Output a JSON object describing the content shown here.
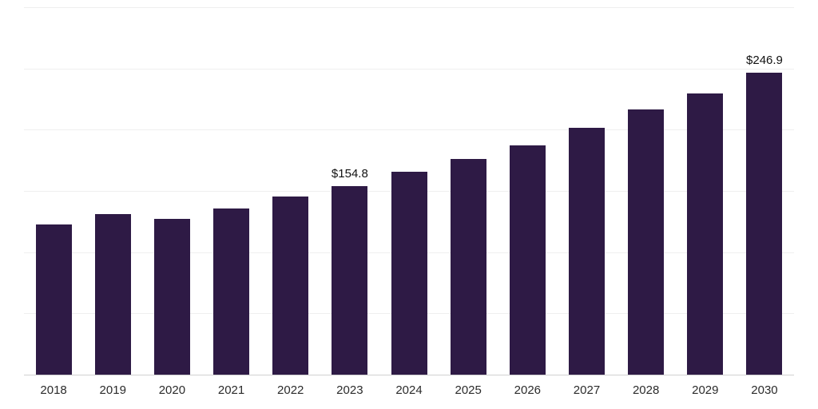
{
  "chart_data": {
    "type": "bar",
    "title": "",
    "xlabel": "",
    "ylabel": "",
    "categories": [
      "2018",
      "2019",
      "2020",
      "2021",
      "2022",
      "2023",
      "2024",
      "2025",
      "2026",
      "2027",
      "2028",
      "2029",
      "2030"
    ],
    "values": [
      123,
      132,
      128,
      136,
      146,
      154.8,
      166,
      177,
      188,
      202,
      217,
      230,
      246.9
    ],
    "data_labels": {
      "2023": "$154.8",
      "2030": "$246.9"
    },
    "ylim": [
      0,
      300
    ],
    "grid_step": 50,
    "grid": true,
    "legend": false,
    "bar_color": "#2e1a45",
    "gridline_color": "#efefef",
    "axis_line_color": "#d0d0d0",
    "label_color": "#111111",
    "tick_color": "#2b2b2b"
  }
}
